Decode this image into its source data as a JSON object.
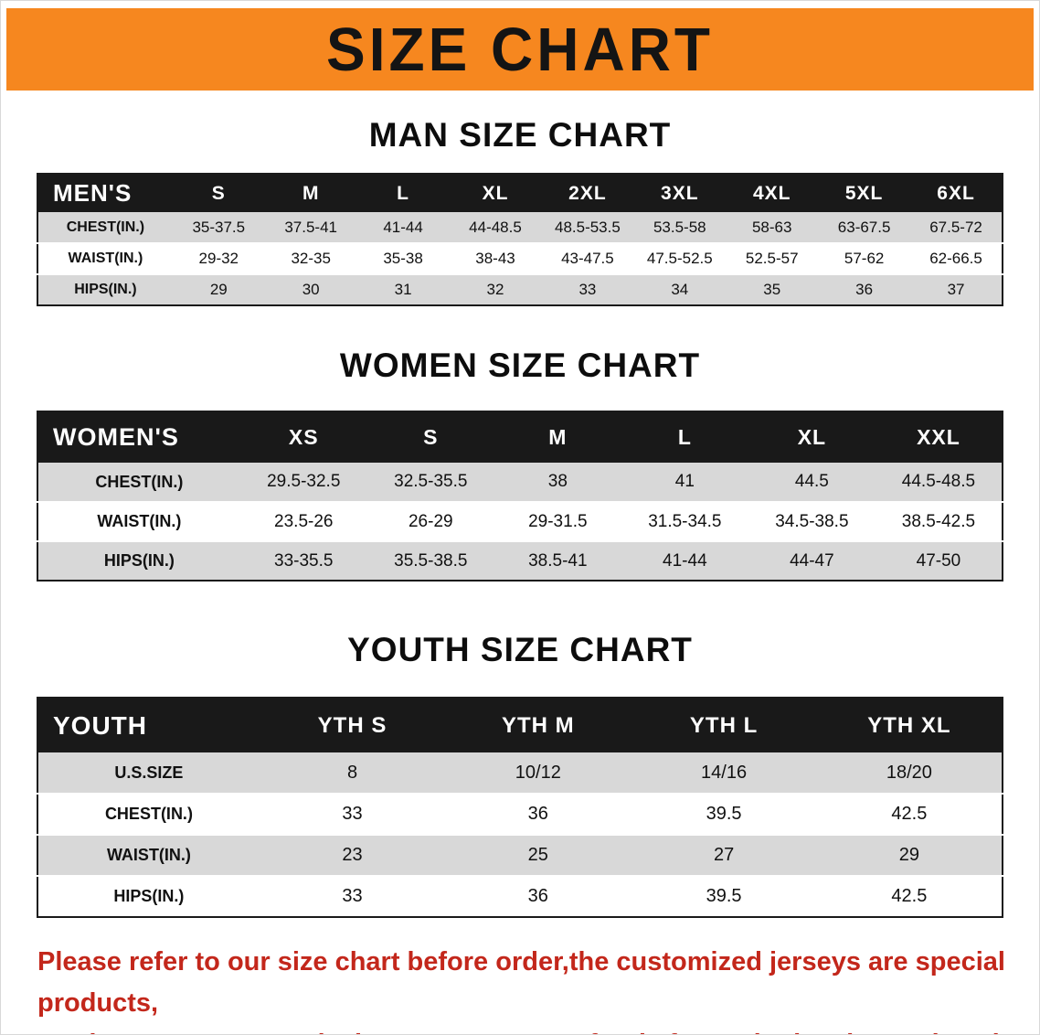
{
  "banner": {
    "title": "SIZE CHART"
  },
  "colors": {
    "banner_bg": "#f6871f",
    "header_bg": "#191919",
    "stripe": "#d8d8d8",
    "footer_text": "#c3271b",
    "heading_text": "#0d0d0d"
  },
  "sections": [
    {
      "id": "men",
      "heading": "MAN SIZE CHART",
      "table": {
        "header": [
          "MEN'S",
          "S",
          "M",
          "L",
          "XL",
          "2XL",
          "3XL",
          "4XL",
          "5XL",
          "6XL"
        ],
        "rows": [
          {
            "label": "CHEST(IN.)",
            "values": [
              "35-37.5",
              "37.5-41",
              "41-44",
              "44-48.5",
              "48.5-53.5",
              "53.5-58",
              "58-63",
              "63-67.5",
              "67.5-72"
            ]
          },
          {
            "label": "WAIST(IN.)",
            "values": [
              "29-32",
              "32-35",
              "35-38",
              "38-43",
              "43-47.5",
              "47.5-52.5",
              "52.5-57",
              "57-62",
              "62-66.5"
            ]
          },
          {
            "label": "HIPS(IN.)",
            "values": [
              "29",
              "30",
              "31",
              "32",
              "33",
              "34",
              "35",
              "36",
              "37"
            ]
          }
        ]
      }
    },
    {
      "id": "women",
      "heading": "WOMEN SIZE CHART",
      "table": {
        "header": [
          "WOMEN'S",
          "XS",
          "S",
          "M",
          "L",
          "XL",
          "XXL"
        ],
        "rows": [
          {
            "label": "CHEST(IN.)",
            "values": [
              "29.5-32.5",
              "32.5-35.5",
              "38",
              "41",
              "44.5",
              "44.5-48.5"
            ]
          },
          {
            "label": "WAIST(IN.)",
            "values": [
              "23.5-26",
              "26-29",
              "29-31.5",
              "31.5-34.5",
              "34.5-38.5",
              "38.5-42.5"
            ]
          },
          {
            "label": "HIPS(IN.)",
            "values": [
              "33-35.5",
              "35.5-38.5",
              "38.5-41",
              "41-44",
              "44-47",
              "47-50"
            ]
          }
        ]
      }
    },
    {
      "id": "youth",
      "heading": "YOUTH SIZE CHART",
      "table": {
        "header": [
          "YOUTH",
          "YTH S",
          "YTH M",
          "YTH L",
          "YTH XL"
        ],
        "rows": [
          {
            "label": "U.S.SIZE",
            "values": [
              "8",
              "10/12",
              "14/16",
              "18/20"
            ]
          },
          {
            "label": "CHEST(IN.)",
            "values": [
              "33",
              "36",
              "39.5",
              "42.5"
            ]
          },
          {
            "label": "WAIST(IN.)",
            "values": [
              "23",
              "25",
              "27",
              "29"
            ]
          },
          {
            "label": "HIPS(IN.)",
            "values": [
              "33",
              "36",
              "39.5",
              "42.5"
            ]
          }
        ]
      }
    }
  ],
  "footer": {
    "lines": [
      "Please refer to our size chart before order,the customized jerseys are special products,",
      "we don't accept cancel, change, teturn or refund after order has been placed!"
    ]
  }
}
